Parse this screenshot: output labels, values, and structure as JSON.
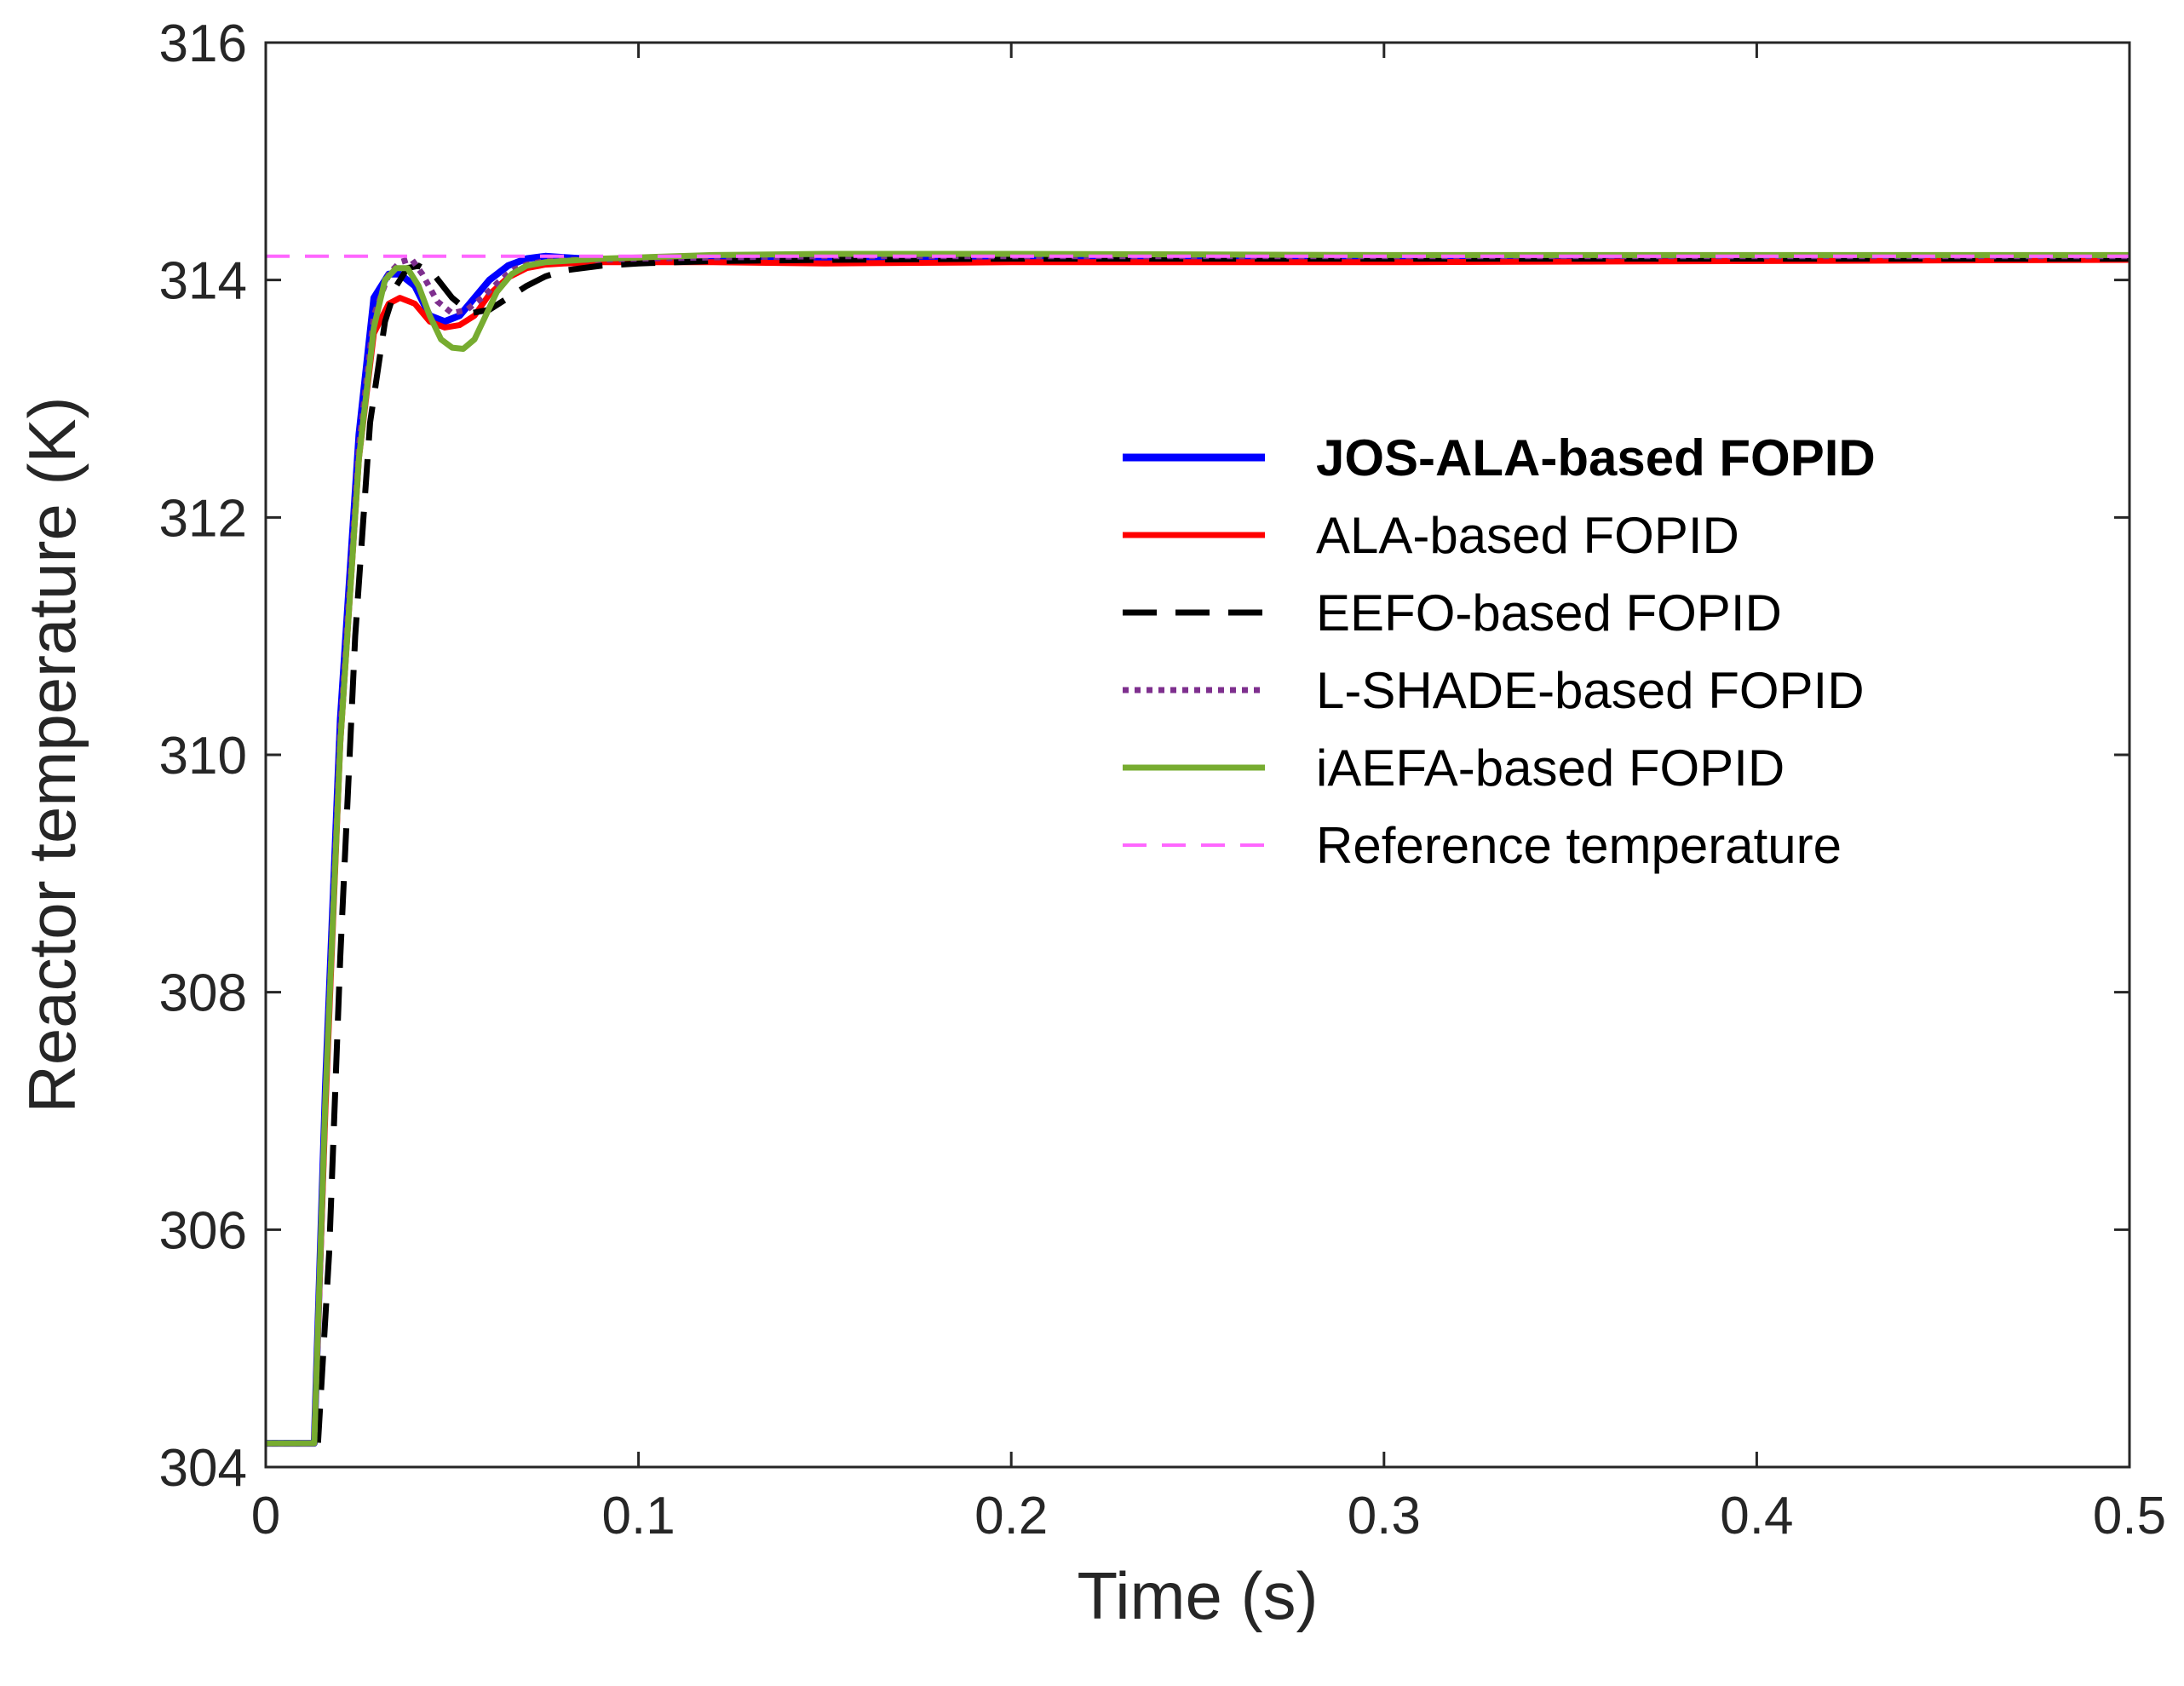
{
  "chart_data": {
    "type": "line",
    "title": "",
    "xlabel": "Time (s)",
    "ylabel": "Reactor temperature (K)",
    "xlim": [
      0,
      0.5
    ],
    "ylim": [
      304,
      316
    ],
    "xticks": [
      0,
      0.1,
      0.2,
      0.3,
      0.4,
      0.5
    ],
    "xtick_labels": [
      "0",
      "0.1",
      "0.2",
      "0.3",
      "0.4",
      "0.5"
    ],
    "yticks": [
      304,
      306,
      308,
      310,
      312,
      314,
      316
    ],
    "ytick_labels": [
      "304",
      "306",
      "308",
      "310",
      "312",
      "314",
      "316"
    ],
    "grid": false,
    "legend_position": "center-right",
    "series": [
      {
        "name": "JOS-ALA-based FOPID",
        "color": "#0000ff",
        "style": "solid",
        "bold": true,
        "x": [
          0,
          0.013,
          0.016,
          0.02,
          0.025,
          0.029,
          0.033,
          0.036,
          0.04,
          0.044,
          0.048,
          0.052,
          0.056,
          0.06,
          0.065,
          0.07,
          0.075,
          0.08,
          0.09,
          0.1,
          0.12,
          0.15,
          0.2,
          0.3,
          0.4,
          0.5
        ],
        "y": [
          304.2,
          304.2,
          307.2,
          310.3,
          312.7,
          313.85,
          314.05,
          314.05,
          313.95,
          313.7,
          313.65,
          313.7,
          313.85,
          314.0,
          314.12,
          314.18,
          314.2,
          314.19,
          314.17,
          314.17,
          314.18,
          314.19,
          314.2,
          314.2,
          314.2,
          314.2
        ]
      },
      {
        "name": "ALA-based FOPID",
        "color": "#ff0000",
        "style": "solid",
        "bold": false,
        "x": [
          0,
          0.013,
          0.016,
          0.02,
          0.025,
          0.029,
          0.033,
          0.036,
          0.04,
          0.044,
          0.048,
          0.052,
          0.056,
          0.06,
          0.065,
          0.07,
          0.075,
          0.08,
          0.09,
          0.1,
          0.12,
          0.15,
          0.2,
          0.3,
          0.4,
          0.5
        ],
        "y": [
          304.2,
          304.2,
          307.0,
          310.1,
          312.5,
          313.55,
          313.8,
          313.85,
          313.8,
          313.65,
          313.6,
          313.62,
          313.7,
          313.88,
          314.02,
          314.1,
          314.13,
          314.14,
          314.15,
          314.15,
          314.15,
          314.14,
          314.15,
          314.15,
          314.16,
          314.17
        ]
      },
      {
        "name": "EEFO-based FOPID",
        "color": "#000000",
        "style": "dashed",
        "bold": false,
        "x": [
          0,
          0.014,
          0.017,
          0.02,
          0.024,
          0.028,
          0.032,
          0.035,
          0.038,
          0.041,
          0.045,
          0.05,
          0.055,
          0.06,
          0.065,
          0.07,
          0.075,
          0.08,
          0.09,
          0.1,
          0.12,
          0.15,
          0.2,
          0.3,
          0.4,
          0.5
        ],
        "y": [
          304.2,
          304.2,
          305.8,
          308.3,
          311.0,
          312.8,
          313.65,
          313.95,
          314.1,
          314.12,
          314.05,
          313.85,
          313.72,
          313.75,
          313.85,
          313.95,
          314.03,
          314.08,
          314.12,
          314.14,
          314.16,
          314.17,
          314.18,
          314.18,
          314.18,
          314.18
        ]
      },
      {
        "name": "L-SHADE-based FOPID",
        "color": "#7e2f8e",
        "style": "dotted",
        "bold": false,
        "x": [
          0,
          0.013,
          0.016,
          0.02,
          0.025,
          0.029,
          0.033,
          0.036,
          0.039,
          0.042,
          0.046,
          0.05,
          0.054,
          0.058,
          0.062,
          0.066,
          0.07,
          0.075,
          0.08,
          0.09,
          0.1,
          0.12,
          0.15,
          0.2,
          0.3,
          0.4,
          0.5
        ],
        "y": [
          304.2,
          304.2,
          307.1,
          310.2,
          312.6,
          313.7,
          314.05,
          314.15,
          314.18,
          314.05,
          313.82,
          313.72,
          313.75,
          313.85,
          313.97,
          314.08,
          314.13,
          314.16,
          314.17,
          314.17,
          314.18,
          314.19,
          314.2,
          314.2,
          314.2,
          314.2,
          314.2
        ]
      },
      {
        "name": "iAEFA-based FOPID",
        "color": "#77ac30",
        "style": "solid",
        "bold": false,
        "x": [
          0,
          0.013,
          0.016,
          0.02,
          0.025,
          0.029,
          0.032,
          0.035,
          0.038,
          0.041,
          0.044,
          0.047,
          0.05,
          0.053,
          0.056,
          0.059,
          0.062,
          0.066,
          0.07,
          0.075,
          0.08,
          0.09,
          0.1,
          0.12,
          0.15,
          0.2,
          0.3,
          0.4,
          0.5
        ],
        "y": [
          304.2,
          304.2,
          307.1,
          310.1,
          312.5,
          313.6,
          314.0,
          314.1,
          314.1,
          313.95,
          313.7,
          313.5,
          313.43,
          313.42,
          313.5,
          313.7,
          313.9,
          314.05,
          314.12,
          314.15,
          314.16,
          314.18,
          314.19,
          314.21,
          314.22,
          314.22,
          314.21,
          314.21,
          314.21
        ]
      },
      {
        "name": "Reference temperature",
        "color": "#ff66ff",
        "style": "dashed",
        "bold": false,
        "x": [
          0,
          0.5
        ],
        "y": [
          314.2,
          314.2
        ]
      }
    ]
  }
}
